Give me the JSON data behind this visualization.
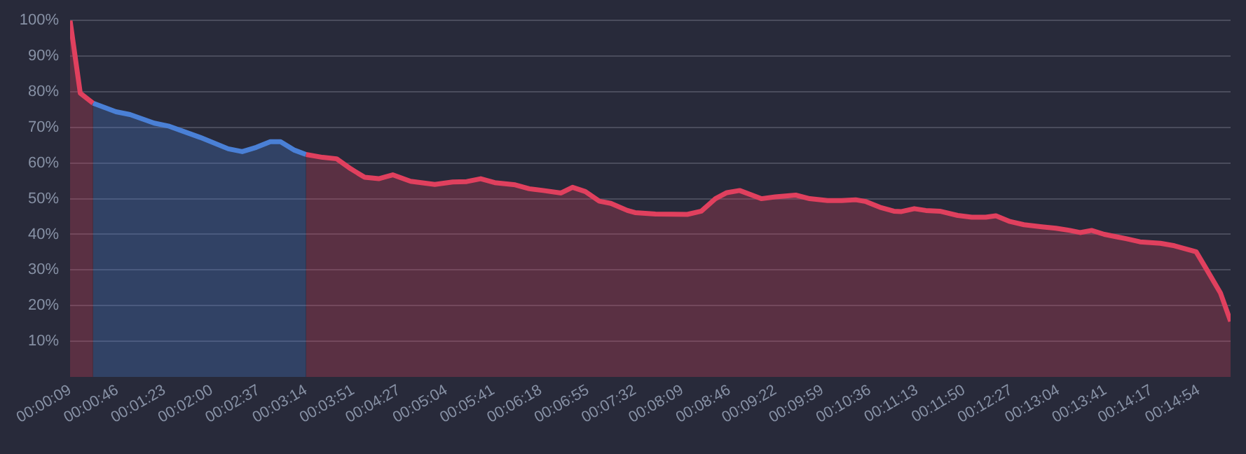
{
  "chart_data": {
    "type": "area",
    "xlim": [
      9,
      919
    ],
    "ylim": [
      0,
      100
    ],
    "xticks": [
      {
        "value": 9,
        "label": "00:00:09"
      },
      {
        "value": 46,
        "label": "00:00:46"
      },
      {
        "value": 83,
        "label": "00:01:23"
      },
      {
        "value": 120,
        "label": "00:02:00"
      },
      {
        "value": 157,
        "label": "00:02:37"
      },
      {
        "value": 194,
        "label": "00:03:14"
      },
      {
        "value": 231,
        "label": "00:03:51"
      },
      {
        "value": 267,
        "label": "00:04:27"
      },
      {
        "value": 304,
        "label": "00:05:04"
      },
      {
        "value": 341,
        "label": "00:05:41"
      },
      {
        "value": 378,
        "label": "00:06:18"
      },
      {
        "value": 415,
        "label": "00:06:55"
      },
      {
        "value": 452,
        "label": "00:07:32"
      },
      {
        "value": 489,
        "label": "00:08:09"
      },
      {
        "value": 526,
        "label": "00:08:46"
      },
      {
        "value": 562,
        "label": "00:09:22"
      },
      {
        "value": 599,
        "label": "00:09:59"
      },
      {
        "value": 636,
        "label": "00:10:36"
      },
      {
        "value": 673,
        "label": "00:11:13"
      },
      {
        "value": 710,
        "label": "00:11:50"
      },
      {
        "value": 747,
        "label": "00:12:27"
      },
      {
        "value": 784,
        "label": "00:13:04"
      },
      {
        "value": 821,
        "label": "00:13:41"
      },
      {
        "value": 857,
        "label": "00:14:17"
      },
      {
        "value": 894,
        "label": "00:14:54"
      }
    ],
    "yticks": [
      {
        "value": 10,
        "label": "10%"
      },
      {
        "value": 20,
        "label": "20%"
      },
      {
        "value": 30,
        "label": "30%"
      },
      {
        "value": 40,
        "label": "40%"
      },
      {
        "value": 50,
        "label": "50%"
      },
      {
        "value": 60,
        "label": "60%"
      },
      {
        "value": 70,
        "label": "70%"
      },
      {
        "value": 80,
        "label": "80%"
      },
      {
        "value": 90,
        "label": "90%"
      },
      {
        "value": 100,
        "label": "100%"
      }
    ],
    "grid": "y",
    "legend": false,
    "marker": "none",
    "line_style": "solid",
    "series": [
      {
        "color": "#e0405e",
        "x": [
          9,
          17,
          27,
          45,
          185,
          194,
          207,
          218,
          229,
          240,
          251,
          262,
          276,
          295,
          309,
          320,
          331,
          342,
          358,
          369,
          380,
          394,
          403,
          413,
          424,
          433,
          446,
          452,
          468,
          493,
          504,
          515,
          524,
          534,
          551,
          562,
          578,
          589,
          603,
          614,
          625,
          633,
          644,
          655,
          661,
          671,
          680,
          691,
          705,
          716,
          727,
          735,
          746,
          757,
          771,
          782,
          793,
          801,
          810,
          820,
          831,
          837,
          848,
          864,
          875,
          892,
          900,
          911,
          919
        ],
        "values": [
          100,
          79.6,
          76.8,
          null,
          null,
          62.4,
          61.6,
          61.2,
          58.4,
          56,
          55.6,
          56.7,
          54.9,
          54,
          54.7,
          54.8,
          55.6,
          54.5,
          53.9,
          52.8,
          52.3,
          51.6,
          53.2,
          52,
          49.3,
          48.7,
          46.7,
          46.1,
          45.7,
          45.6,
          46.5,
          50,
          51.7,
          52.3,
          50,
          50.5,
          51,
          50,
          49.5,
          49.5,
          49.7,
          49.2,
          47.6,
          46.5,
          46.4,
          47.2,
          46.7,
          46.5,
          45.3,
          44.8,
          44.8,
          45.2,
          43.6,
          42.7,
          42.1,
          41.7,
          41.1,
          40.5,
          41.1,
          40,
          39.2,
          38.8,
          37.9,
          37.5,
          36.8,
          35.1,
          30.3,
          23.6,
          15.6
        ]
      },
      {
        "color": "#4a80d6",
        "x": [
          27,
          45,
          56,
          75,
          86,
          111,
          133,
          144,
          155,
          166,
          174,
          185,
          194
        ],
        "values": [
          76.8,
          74.4,
          73.6,
          71.2,
          70.4,
          67.2,
          64,
          63.2,
          64.4,
          66,
          66,
          63.6,
          62.4
        ]
      }
    ]
  }
}
